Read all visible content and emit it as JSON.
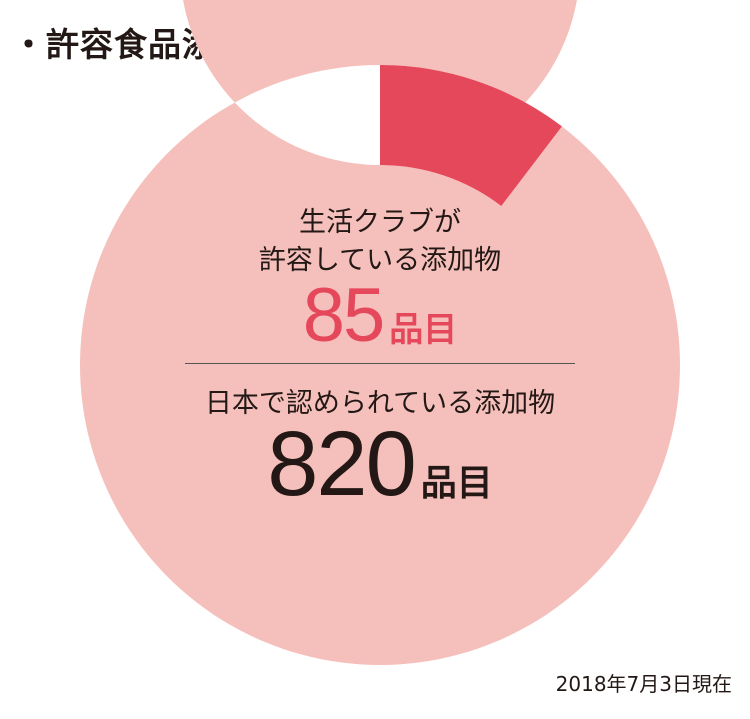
{
  "title": "・許容食品添加物",
  "chart_data": {
    "type": "pie",
    "style": "donut",
    "series": [
      {
        "name": "生活クラブが許容している添加物",
        "value": 85,
        "unit": "品目",
        "color": "#e5475b"
      },
      {
        "name": "日本で認められている添加物",
        "value": 820,
        "unit": "品目",
        "color": "#f5c0bb"
      }
    ],
    "total": 820
  },
  "center": {
    "club_line1": "生活クラブが",
    "club_line2": "許容している添加物",
    "club_value": "85",
    "club_unit": "品目",
    "japan_label": "日本で認められている添加物",
    "japan_value": "820",
    "japan_unit": "品目"
  },
  "footnote": "2018年7月3日現在",
  "colors": {
    "accent": "#e5475b",
    "ring": "#f5c0bb",
    "text": "#231815"
  }
}
